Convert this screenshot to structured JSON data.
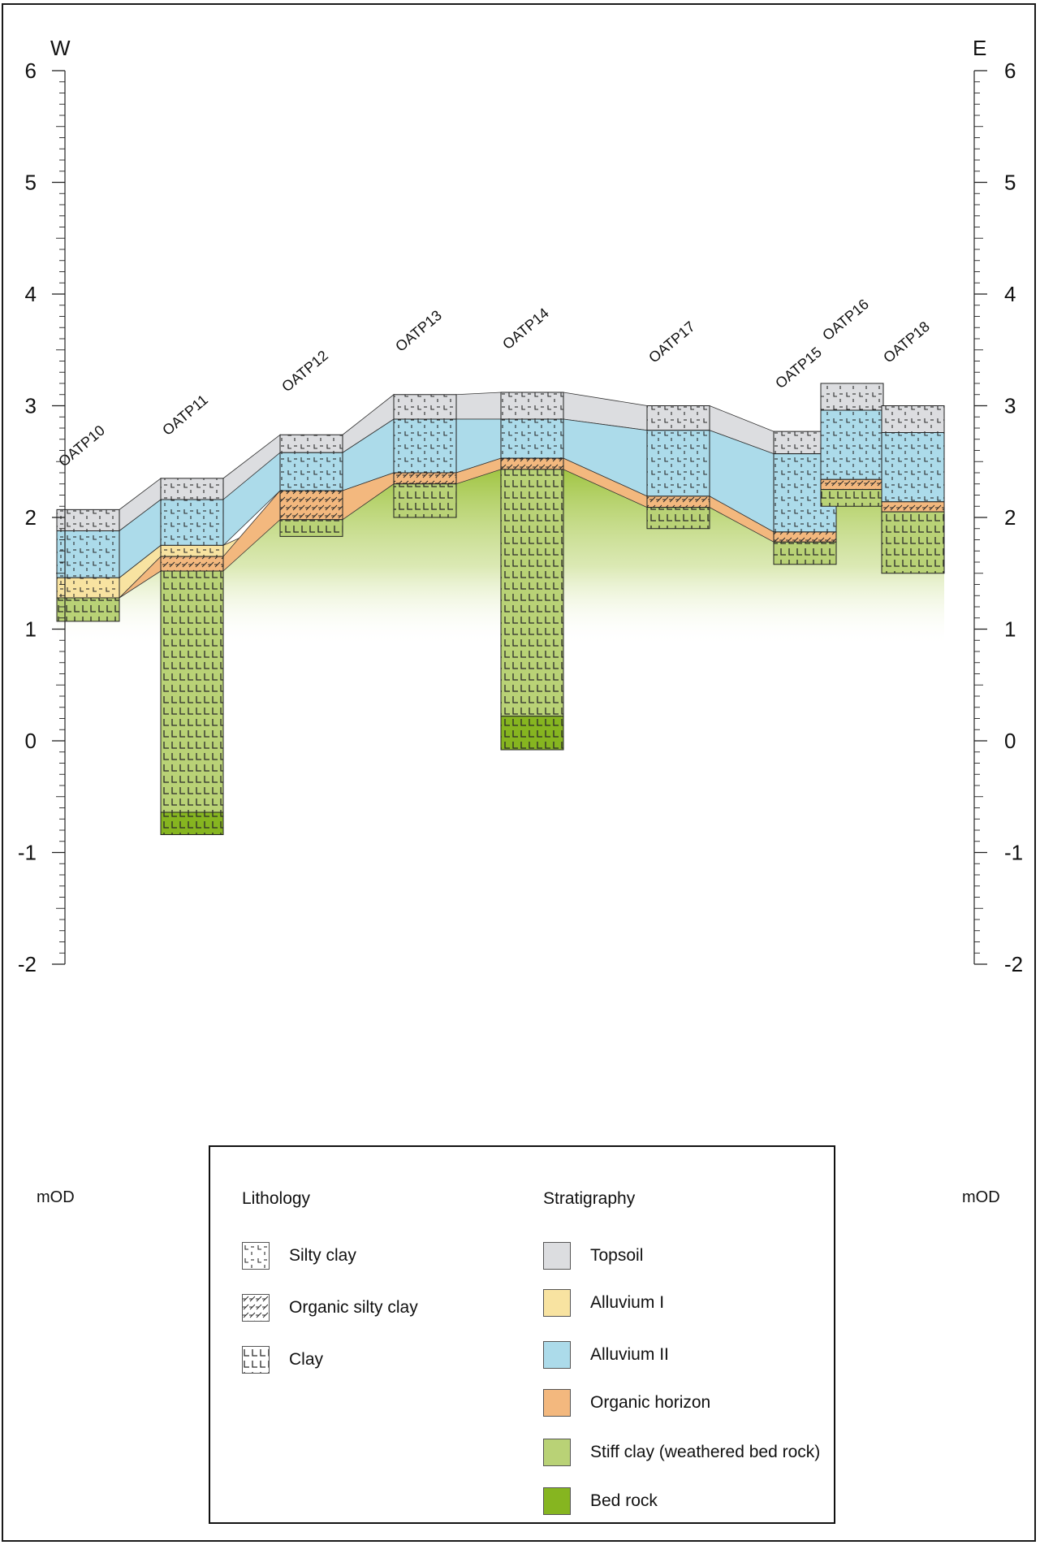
{
  "orientation": {
    "west": "W",
    "east": "E"
  },
  "axis": {
    "unit": "mOD",
    "min": -2,
    "max": 6,
    "ticks": [
      6,
      5,
      4,
      3,
      2,
      1,
      0,
      -1,
      -2
    ],
    "tick_labels": [
      "6",
      "5",
      "4",
      "3",
      "2",
      "1",
      "0",
      "-1",
      "-2"
    ],
    "minor_step": 0.1
  },
  "colors": {
    "topsoil": "#dcdde0",
    "alluvium_i": "#f8e3a1",
    "alluvium_ii": "#acdbea",
    "organic_horizon": "#f3b87e",
    "stiff_clay": "#b9d276",
    "bed_rock": "#86b520",
    "hatch": "#2a2a2a",
    "frame": "#1a1a1a"
  },
  "boreholes": [
    {
      "id": "OATP10",
      "label": "OATP10",
      "layers": [
        {
          "unit": "topsoil",
          "top": 2.07,
          "bottom": 1.88
        },
        {
          "unit": "alluvium_ii",
          "top": 1.88,
          "bottom": 1.46
        },
        {
          "unit": "alluvium_i",
          "top": 1.46,
          "bottom": 1.28
        },
        {
          "unit": "stiff_clay",
          "top": 1.28,
          "bottom": 1.07
        }
      ]
    },
    {
      "id": "OATP11",
      "label": "OATP11",
      "layers": [
        {
          "unit": "topsoil",
          "top": 2.35,
          "bottom": 2.16
        },
        {
          "unit": "alluvium_ii",
          "top": 2.16,
          "bottom": 1.75
        },
        {
          "unit": "alluvium_i",
          "top": 1.75,
          "bottom": 1.65
        },
        {
          "unit": "organic_horizon",
          "top": 1.65,
          "bottom": 1.52
        },
        {
          "unit": "stiff_clay",
          "top": 1.52,
          "bottom": -0.64
        },
        {
          "unit": "bed_rock",
          "top": -0.64,
          "bottom": -0.84
        }
      ]
    },
    {
      "id": "OATP12",
      "label": "OATP12",
      "layers": [
        {
          "unit": "topsoil",
          "top": 2.74,
          "bottom": 2.58
        },
        {
          "unit": "alluvium_ii",
          "top": 2.58,
          "bottom": 2.24
        },
        {
          "unit": "organic_horizon",
          "top": 2.24,
          "bottom": 1.98
        },
        {
          "unit": "stiff_clay",
          "top": 1.98,
          "bottom": 1.83
        }
      ]
    },
    {
      "id": "OATP13",
      "label": "OATP13",
      "layers": [
        {
          "unit": "topsoil",
          "top": 3.1,
          "bottom": 2.88
        },
        {
          "unit": "alluvium_ii",
          "top": 2.88,
          "bottom": 2.4
        },
        {
          "unit": "organic_horizon",
          "top": 2.4,
          "bottom": 2.3
        },
        {
          "unit": "stiff_clay",
          "top": 2.3,
          "bottom": 2.0
        }
      ]
    },
    {
      "id": "OATP14",
      "label": "OATP14",
      "layers": [
        {
          "unit": "topsoil",
          "top": 3.12,
          "bottom": 2.88
        },
        {
          "unit": "alluvium_ii",
          "top": 2.88,
          "bottom": 2.53
        },
        {
          "unit": "organic_horizon",
          "top": 2.53,
          "bottom": 2.43
        },
        {
          "unit": "stiff_clay",
          "top": 2.43,
          "bottom": 0.22
        },
        {
          "unit": "bed_rock",
          "top": 0.22,
          "bottom": -0.08
        }
      ]
    },
    {
      "id": "OATP17",
      "label": "OATP17",
      "layers": [
        {
          "unit": "topsoil",
          "top": 3.0,
          "bottom": 2.78
        },
        {
          "unit": "alluvium_ii",
          "top": 2.78,
          "bottom": 2.19
        },
        {
          "unit": "organic_horizon",
          "top": 2.19,
          "bottom": 2.09
        },
        {
          "unit": "stiff_clay",
          "top": 2.09,
          "bottom": 1.9
        }
      ]
    },
    {
      "id": "OATP15",
      "label": "OATP15",
      "layers": [
        {
          "unit": "topsoil",
          "top": 2.77,
          "bottom": 2.57
        },
        {
          "unit": "alluvium_ii",
          "top": 2.57,
          "bottom": 1.87
        },
        {
          "unit": "organic_horizon",
          "top": 1.87,
          "bottom": 1.78
        },
        {
          "unit": "stiff_clay",
          "top": 1.78,
          "bottom": 1.58
        }
      ]
    },
    {
      "id": "OATP16",
      "label": "OATP16",
      "layers": [
        {
          "unit": "topsoil",
          "top": 3.2,
          "bottom": 2.96
        },
        {
          "unit": "alluvium_ii",
          "top": 2.96,
          "bottom": 2.34
        },
        {
          "unit": "organic_horizon",
          "top": 2.34,
          "bottom": 2.25
        },
        {
          "unit": "stiff_clay",
          "top": 2.25,
          "bottom": 2.1
        }
      ]
    },
    {
      "id": "OATP18",
      "label": "OATP18",
      "layers": [
        {
          "unit": "topsoil",
          "top": 3.0,
          "bottom": 2.76
        },
        {
          "unit": "alluvium_ii",
          "top": 2.76,
          "bottom": 2.14
        },
        {
          "unit": "organic_horizon",
          "top": 2.14,
          "bottom": 2.05
        },
        {
          "unit": "stiff_clay",
          "top": 2.05,
          "bottom": 1.5
        }
      ]
    }
  ],
  "legend": {
    "lithology_title": "Lithology",
    "stratigraphy_title": "Stratigraphy",
    "lithology": [
      {
        "key": "silty_clay",
        "label": "Silty clay"
      },
      {
        "key": "organic_silty_clay",
        "label": "Organic silty clay"
      },
      {
        "key": "clay",
        "label": "Clay"
      }
    ],
    "stratigraphy": [
      {
        "key": "topsoil",
        "label": "Topsoil"
      },
      {
        "key": "alluvium_i",
        "label": "Alluvium I"
      },
      {
        "key": "alluvium_ii",
        "label": "Alluvium II"
      },
      {
        "key": "organic_horizon",
        "label": "Organic horizon"
      },
      {
        "key": "stiff_clay",
        "label": "Stiff clay (weathered bed rock)"
      },
      {
        "key": "bed_rock",
        "label": "Bed rock"
      }
    ]
  }
}
